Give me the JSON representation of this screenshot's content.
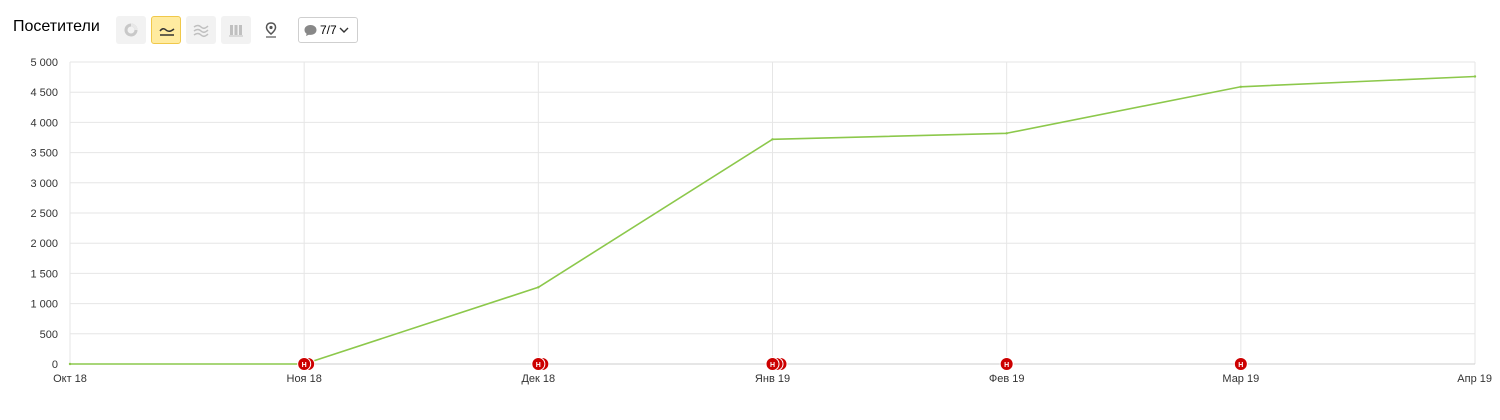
{
  "header": {
    "title": "Посетители",
    "tools": [
      {
        "icon": "pie-chart-icon",
        "active": false
      },
      {
        "icon": "line-chart-icon",
        "active": true
      },
      {
        "icon": "area-chart-icon",
        "active": false
      },
      {
        "icon": "bar-chart-icon",
        "active": false
      },
      {
        "icon": "map-pin-icon",
        "active": false
      }
    ],
    "annotations_dropdown": {
      "label": "7/7",
      "icon": "comment-icon"
    }
  },
  "colors": {
    "line": "#8cc84b",
    "marker": "#cc0000",
    "grid": "#e6e6e6",
    "active_tool": "#ffeba0"
  },
  "chart_data": {
    "type": "line",
    "x": [
      "Окт 18",
      "Ноя 18",
      "Дек 18",
      "Янв 19",
      "Фев 19",
      "Мар 19",
      "Апр 19"
    ],
    "series": [
      {
        "values": [
          0,
          0,
          1270,
          3720,
          3820,
          4590,
          4760
        ]
      }
    ],
    "yticks": [
      "0",
      "500",
      "1 000",
      "1 500",
      "2 000",
      "2 500",
      "3 000",
      "3 500",
      "4 000",
      "4 500",
      "5 000"
    ],
    "ylim": [
      0,
      5000
    ],
    "grid": true,
    "markers": [
      {
        "x": "Ноя 18",
        "count": 2,
        "label": "Н"
      },
      {
        "x": "Дек 18",
        "count": 2,
        "label": "Н"
      },
      {
        "x": "Янв 19",
        "count": 3,
        "label": "Н"
      },
      {
        "x": "Фев 19",
        "count": 1,
        "label": "Н"
      },
      {
        "x": "Мар 19",
        "count": 1,
        "label": "Н"
      }
    ]
  }
}
